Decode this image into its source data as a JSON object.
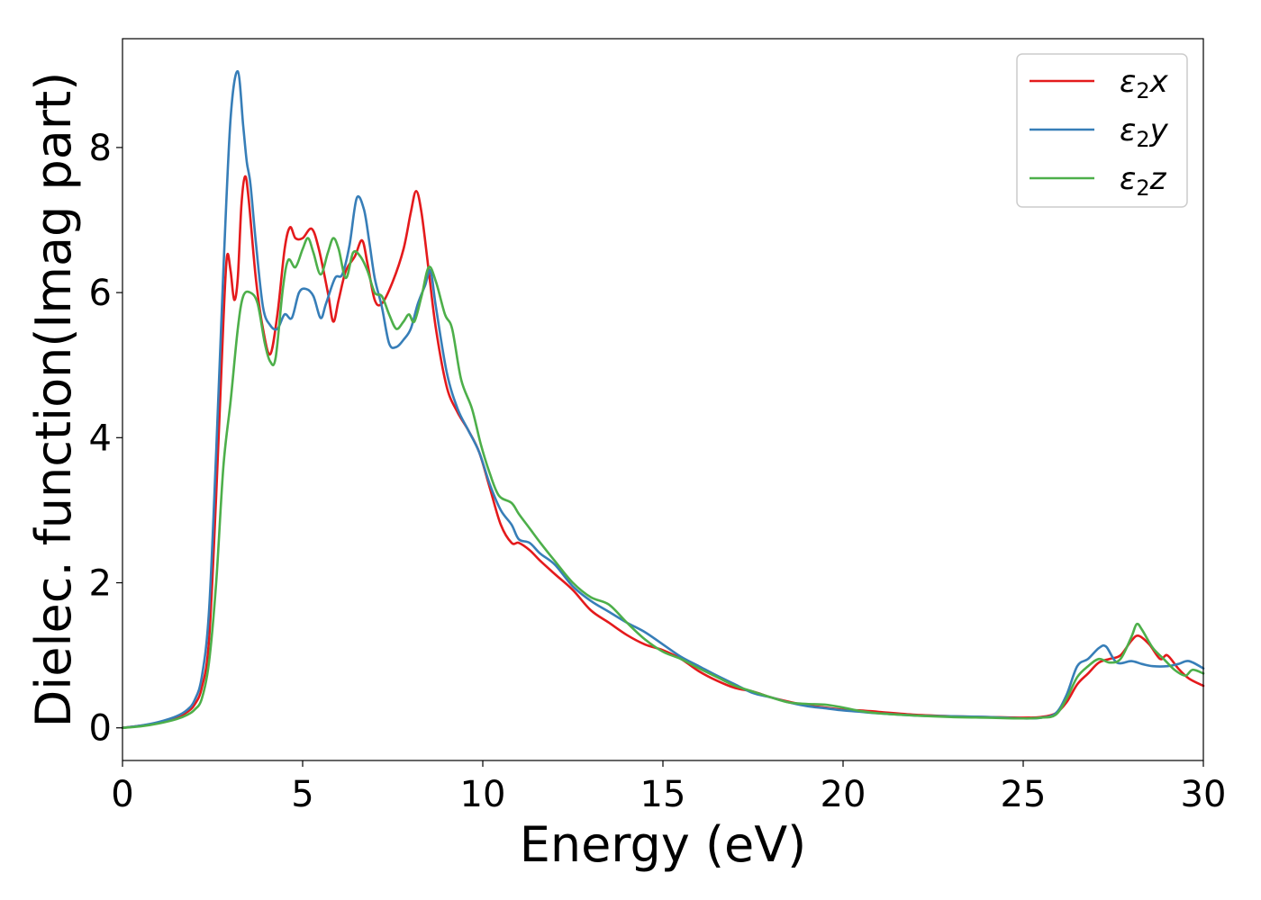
{
  "chart_data": {
    "type": "line",
    "xlabel": "Energy (eV)",
    "ylabel": "Dielec. function(Imag part)",
    "xlim": [
      0,
      30
    ],
    "ylim": [
      -0.45,
      9.5
    ],
    "xticks": [
      0,
      5,
      10,
      15,
      20,
      25,
      30
    ],
    "xtick_labels": [
      "0",
      "5",
      "10",
      "15",
      "20",
      "25",
      "30"
    ],
    "yticks": [
      0,
      2,
      4,
      6,
      8
    ],
    "ytick_labels": [
      "0",
      "2",
      "4",
      "6",
      "8"
    ],
    "grid": false,
    "legend_position": "top-right",
    "series": [
      {
        "name": "ε2x",
        "name_base": "ε",
        "name_sub": "2",
        "name_suffix": "x",
        "color": "#e41a1c",
        "points": [
          [
            0,
            0
          ],
          [
            0.5,
            0.03
          ],
          [
            1,
            0.07
          ],
          [
            1.5,
            0.14
          ],
          [
            1.8,
            0.22
          ],
          [
            2.0,
            0.32
          ],
          [
            2.2,
            0.55
          ],
          [
            2.4,
            1.2
          ],
          [
            2.6,
            3.2
          ],
          [
            2.8,
            5.6
          ],
          [
            2.9,
            6.5
          ],
          [
            3.0,
            6.3
          ],
          [
            3.1,
            5.9
          ],
          [
            3.2,
            6.2
          ],
          [
            3.3,
            7.2
          ],
          [
            3.4,
            7.6
          ],
          [
            3.5,
            7.3
          ],
          [
            3.7,
            6.2
          ],
          [
            3.9,
            5.5
          ],
          [
            4.1,
            5.15
          ],
          [
            4.3,
            5.7
          ],
          [
            4.5,
            6.6
          ],
          [
            4.65,
            6.9
          ],
          [
            4.8,
            6.75
          ],
          [
            5.0,
            6.75
          ],
          [
            5.25,
            6.88
          ],
          [
            5.45,
            6.6
          ],
          [
            5.7,
            6.0
          ],
          [
            5.85,
            5.6
          ],
          [
            6.0,
            5.9
          ],
          [
            6.2,
            6.3
          ],
          [
            6.45,
            6.5
          ],
          [
            6.65,
            6.72
          ],
          [
            6.8,
            6.4
          ],
          [
            7.0,
            5.9
          ],
          [
            7.2,
            5.85
          ],
          [
            7.5,
            6.15
          ],
          [
            7.8,
            6.6
          ],
          [
            8.0,
            7.1
          ],
          [
            8.15,
            7.4
          ],
          [
            8.3,
            7.1
          ],
          [
            8.5,
            6.3
          ],
          [
            8.7,
            5.5
          ],
          [
            9.0,
            4.7
          ],
          [
            9.3,
            4.35
          ],
          [
            9.6,
            4.1
          ],
          [
            9.9,
            3.8
          ],
          [
            10.2,
            3.3
          ],
          [
            10.5,
            2.8
          ],
          [
            10.8,
            2.55
          ],
          [
            11.0,
            2.55
          ],
          [
            11.3,
            2.45
          ],
          [
            11.6,
            2.3
          ],
          [
            12.0,
            2.12
          ],
          [
            12.5,
            1.9
          ],
          [
            13.0,
            1.62
          ],
          [
            13.5,
            1.45
          ],
          [
            14.0,
            1.28
          ],
          [
            14.5,
            1.15
          ],
          [
            15.0,
            1.07
          ],
          [
            15.5,
            0.95
          ],
          [
            16.0,
            0.78
          ],
          [
            16.5,
            0.65
          ],
          [
            17.0,
            0.55
          ],
          [
            17.5,
            0.5
          ],
          [
            18.0,
            0.42
          ],
          [
            18.5,
            0.36
          ],
          [
            19.0,
            0.31
          ],
          [
            19.5,
            0.28
          ],
          [
            20.0,
            0.25
          ],
          [
            20.5,
            0.24
          ],
          [
            21.0,
            0.22
          ],
          [
            22.0,
            0.18
          ],
          [
            23.0,
            0.16
          ],
          [
            24.0,
            0.15
          ],
          [
            25.0,
            0.14
          ],
          [
            25.5,
            0.15
          ],
          [
            25.9,
            0.2
          ],
          [
            26.2,
            0.35
          ],
          [
            26.5,
            0.6
          ],
          [
            26.8,
            0.75
          ],
          [
            27.1,
            0.9
          ],
          [
            27.4,
            0.95
          ],
          [
            27.7,
            1.0
          ],
          [
            28.0,
            1.2
          ],
          [
            28.2,
            1.27
          ],
          [
            28.5,
            1.15
          ],
          [
            28.8,
            0.95
          ],
          [
            29.0,
            1.0
          ],
          [
            29.3,
            0.82
          ],
          [
            29.6,
            0.68
          ],
          [
            30.0,
            0.58
          ]
        ]
      },
      {
        "name": "ε2y",
        "name_base": "ε",
        "name_sub": "2",
        "name_suffix": "y",
        "color": "#377eb8",
        "points": [
          [
            0,
            0
          ],
          [
            0.5,
            0.03
          ],
          [
            1,
            0.08
          ],
          [
            1.5,
            0.16
          ],
          [
            1.8,
            0.25
          ],
          [
            2.0,
            0.38
          ],
          [
            2.2,
            0.7
          ],
          [
            2.4,
            1.6
          ],
          [
            2.6,
            3.8
          ],
          [
            2.8,
            6.3
          ],
          [
            3.0,
            8.4
          ],
          [
            3.2,
            9.05
          ],
          [
            3.35,
            8.3
          ],
          [
            3.45,
            7.8
          ],
          [
            3.55,
            7.5
          ],
          [
            3.7,
            6.7
          ],
          [
            3.9,
            5.8
          ],
          [
            4.1,
            5.55
          ],
          [
            4.3,
            5.5
          ],
          [
            4.5,
            5.7
          ],
          [
            4.7,
            5.65
          ],
          [
            4.9,
            6.0
          ],
          [
            5.1,
            6.05
          ],
          [
            5.3,
            5.95
          ],
          [
            5.5,
            5.65
          ],
          [
            5.65,
            5.85
          ],
          [
            5.9,
            6.2
          ],
          [
            6.1,
            6.25
          ],
          [
            6.3,
            6.65
          ],
          [
            6.5,
            7.3
          ],
          [
            6.7,
            7.15
          ],
          [
            6.85,
            6.7
          ],
          [
            7.0,
            6.2
          ],
          [
            7.2,
            5.8
          ],
          [
            7.4,
            5.3
          ],
          [
            7.6,
            5.25
          ],
          [
            7.8,
            5.35
          ],
          [
            8.0,
            5.5
          ],
          [
            8.2,
            5.85
          ],
          [
            8.4,
            6.1
          ],
          [
            8.55,
            6.3
          ],
          [
            8.7,
            5.8
          ],
          [
            9.0,
            4.9
          ],
          [
            9.3,
            4.4
          ],
          [
            9.6,
            4.1
          ],
          [
            9.9,
            3.8
          ],
          [
            10.2,
            3.35
          ],
          [
            10.5,
            3.0
          ],
          [
            10.8,
            2.8
          ],
          [
            11.0,
            2.6
          ],
          [
            11.3,
            2.55
          ],
          [
            11.6,
            2.4
          ],
          [
            12.0,
            2.25
          ],
          [
            12.5,
            1.95
          ],
          [
            13.0,
            1.75
          ],
          [
            13.5,
            1.6
          ],
          [
            14.0,
            1.45
          ],
          [
            14.5,
            1.32
          ],
          [
            15.0,
            1.15
          ],
          [
            15.5,
            0.98
          ],
          [
            16.0,
            0.85
          ],
          [
            16.5,
            0.72
          ],
          [
            17.0,
            0.6
          ],
          [
            17.5,
            0.48
          ],
          [
            18.0,
            0.42
          ],
          [
            18.5,
            0.35
          ],
          [
            19.0,
            0.3
          ],
          [
            19.5,
            0.27
          ],
          [
            20.0,
            0.24
          ],
          [
            20.5,
            0.22
          ],
          [
            21.0,
            0.2
          ],
          [
            22.0,
            0.17
          ],
          [
            23.0,
            0.16
          ],
          [
            24.0,
            0.15
          ],
          [
            25.0,
            0.13
          ],
          [
            25.5,
            0.14
          ],
          [
            25.9,
            0.2
          ],
          [
            26.2,
            0.45
          ],
          [
            26.5,
            0.85
          ],
          [
            26.8,
            0.95
          ],
          [
            27.1,
            1.1
          ],
          [
            27.3,
            1.12
          ],
          [
            27.6,
            0.9
          ],
          [
            28.0,
            0.92
          ],
          [
            28.3,
            0.88
          ],
          [
            28.6,
            0.85
          ],
          [
            29.0,
            0.85
          ],
          [
            29.3,
            0.88
          ],
          [
            29.6,
            0.92
          ],
          [
            30.0,
            0.82
          ]
        ]
      },
      {
        "name": "ε2z",
        "name_base": "ε",
        "name_sub": "2",
        "name_suffix": "z",
        "color": "#4daf4a",
        "points": [
          [
            0,
            0
          ],
          [
            0.5,
            0.02
          ],
          [
            1,
            0.06
          ],
          [
            1.5,
            0.12
          ],
          [
            1.8,
            0.18
          ],
          [
            2.0,
            0.25
          ],
          [
            2.2,
            0.4
          ],
          [
            2.4,
            0.9
          ],
          [
            2.6,
            2.0
          ],
          [
            2.8,
            3.6
          ],
          [
            3.0,
            4.5
          ],
          [
            3.2,
            5.5
          ],
          [
            3.35,
            5.95
          ],
          [
            3.55,
            6.0
          ],
          [
            3.75,
            5.85
          ],
          [
            3.95,
            5.3
          ],
          [
            4.1,
            5.05
          ],
          [
            4.25,
            5.1
          ],
          [
            4.45,
            6.05
          ],
          [
            4.6,
            6.45
          ],
          [
            4.8,
            6.35
          ],
          [
            5.0,
            6.6
          ],
          [
            5.15,
            6.75
          ],
          [
            5.3,
            6.55
          ],
          [
            5.5,
            6.25
          ],
          [
            5.7,
            6.55
          ],
          [
            5.85,
            6.75
          ],
          [
            6.0,
            6.6
          ],
          [
            6.2,
            6.2
          ],
          [
            6.4,
            6.55
          ],
          [
            6.6,
            6.5
          ],
          [
            6.8,
            6.3
          ],
          [
            7.0,
            6.0
          ],
          [
            7.2,
            5.95
          ],
          [
            7.4,
            5.7
          ],
          [
            7.6,
            5.5
          ],
          [
            7.8,
            5.6
          ],
          [
            7.95,
            5.7
          ],
          [
            8.1,
            5.6
          ],
          [
            8.3,
            5.95
          ],
          [
            8.5,
            6.35
          ],
          [
            8.7,
            6.15
          ],
          [
            8.95,
            5.7
          ],
          [
            9.15,
            5.5
          ],
          [
            9.4,
            4.8
          ],
          [
            9.7,
            4.4
          ],
          [
            9.95,
            3.9
          ],
          [
            10.2,
            3.5
          ],
          [
            10.45,
            3.2
          ],
          [
            10.8,
            3.1
          ],
          [
            11.0,
            2.95
          ],
          [
            11.3,
            2.75
          ],
          [
            11.6,
            2.55
          ],
          [
            12.0,
            2.3
          ],
          [
            12.5,
            2.0
          ],
          [
            13.0,
            1.8
          ],
          [
            13.5,
            1.7
          ],
          [
            14.0,
            1.45
          ],
          [
            14.5,
            1.22
          ],
          [
            15.0,
            1.05
          ],
          [
            15.5,
            0.95
          ],
          [
            16.0,
            0.82
          ],
          [
            16.5,
            0.7
          ],
          [
            17.0,
            0.58
          ],
          [
            17.5,
            0.5
          ],
          [
            18.0,
            0.42
          ],
          [
            18.5,
            0.35
          ],
          [
            19.0,
            0.33
          ],
          [
            19.5,
            0.32
          ],
          [
            20.0,
            0.28
          ],
          [
            20.5,
            0.23
          ],
          [
            21.0,
            0.2
          ],
          [
            22.0,
            0.17
          ],
          [
            23.0,
            0.15
          ],
          [
            24.0,
            0.14
          ],
          [
            25.0,
            0.13
          ],
          [
            25.5,
            0.14
          ],
          [
            25.9,
            0.18
          ],
          [
            26.2,
            0.4
          ],
          [
            26.5,
            0.7
          ],
          [
            26.8,
            0.85
          ],
          [
            27.1,
            0.95
          ],
          [
            27.4,
            0.9
          ],
          [
            27.7,
            0.95
          ],
          [
            28.0,
            1.25
          ],
          [
            28.15,
            1.43
          ],
          [
            28.3,
            1.35
          ],
          [
            28.6,
            1.1
          ],
          [
            28.9,
            0.95
          ],
          [
            29.2,
            0.8
          ],
          [
            29.5,
            0.72
          ],
          [
            29.7,
            0.8
          ],
          [
            30.0,
            0.75
          ]
        ]
      }
    ]
  }
}
